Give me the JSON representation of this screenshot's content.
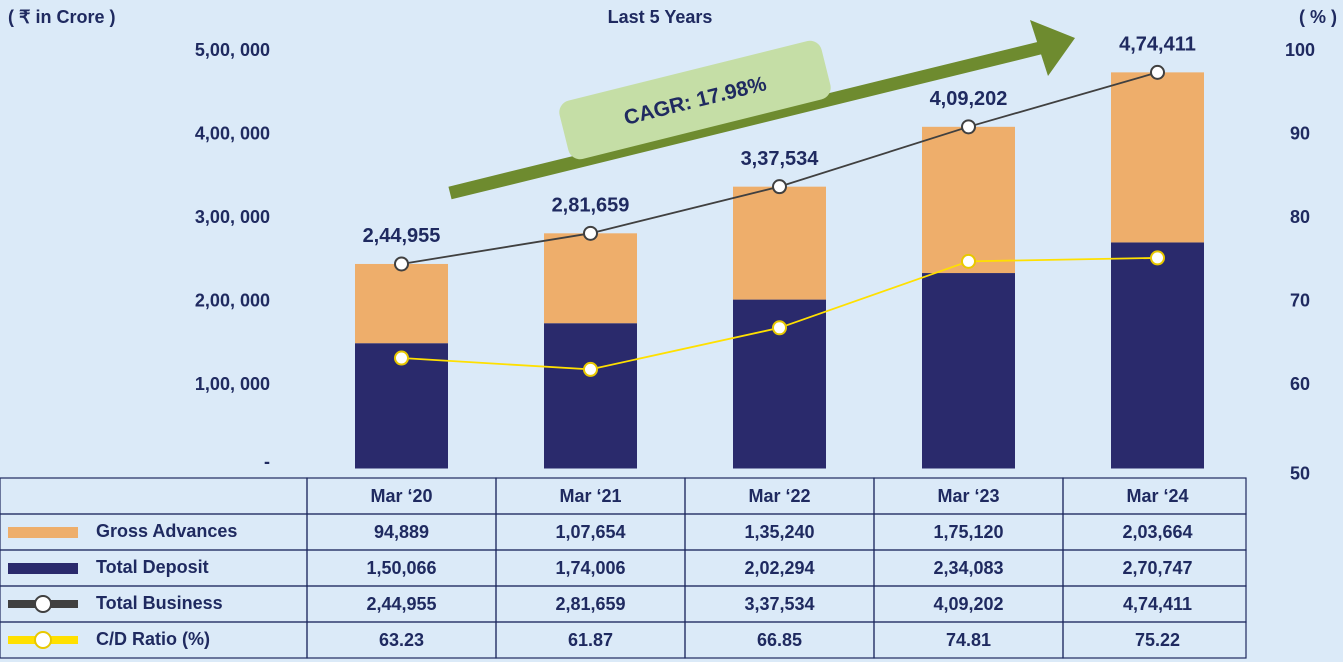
{
  "chart_data": {
    "type": "bar",
    "title": "Last 5 Years",
    "y_label": "( ₹ in Crore )",
    "y2_label": "( % )",
    "annotation": "CAGR: 17.98%",
    "categories": [
      "Mar ‘20",
      "Mar ‘21",
      "Mar ‘22",
      "Mar ‘23",
      "Mar ‘24"
    ],
    "series": [
      {
        "name": "Gross Advances",
        "type": "bar",
        "color": "#eeae6b",
        "values": [
          94889,
          107654,
          135240,
          175120,
          203664
        ],
        "value_labels": [
          "94,889",
          "1,07,654",
          "1,35,240",
          "1,75,120",
          "2,03,664"
        ]
      },
      {
        "name": "Total Deposit",
        "type": "bar",
        "color": "#2a2a6c",
        "values": [
          150066,
          174006,
          202294,
          234083,
          270747
        ],
        "value_labels": [
          "1,50,066",
          "1,74,006",
          "2,02,294",
          "2,34,083",
          "2,70,747"
        ]
      },
      {
        "name": "Total Business",
        "type": "line",
        "color": "#404040",
        "values": [
          244955,
          281659,
          337534,
          409202,
          474411
        ],
        "value_labels": [
          "2,44,955",
          "2,81,659",
          "3,37,534",
          "4,09,202",
          "4,74,411"
        ]
      },
      {
        "name": "C/D Ratio (%)",
        "type": "line",
        "axis": "y2",
        "color": "#ffe000",
        "values": [
          63.23,
          61.87,
          66.85,
          74.81,
          75.22
        ]
      }
    ],
    "ylim": [
      0,
      500000
    ],
    "yticks": [
      {
        "value": 0,
        "label": "-"
      },
      {
        "value": 100000,
        "label": "1,00, 000"
      },
      {
        "value": 200000,
        "label": "2,00, 000"
      },
      {
        "value": 300000,
        "label": "3,00, 000"
      },
      {
        "value": 400000,
        "label": "4,00, 000"
      },
      {
        "value": 500000,
        "label": "5,00, 000"
      }
    ],
    "y2lim": [
      50,
      100
    ],
    "y2ticks": [
      50,
      60,
      70,
      80,
      90,
      100
    ]
  }
}
